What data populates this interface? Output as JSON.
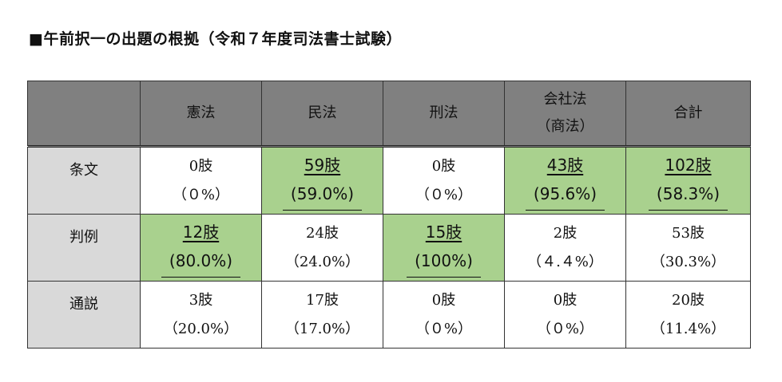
{
  "title": "■午前択一の出題の根拠（令和７年度司法書士試験）",
  "columns": [
    "",
    "憲法",
    "民法",
    "刑法",
    "会社法",
    "合計"
  ],
  "columns_sub": [
    "",
    "",
    "",
    "",
    "（商法）",
    ""
  ],
  "rows": [
    {
      "label": "条文",
      "cells": [
        {
          "count": "0肢",
          "pct": "（０%）",
          "highlight": false
        },
        {
          "count": "59肢",
          "pct": "(59.0%)",
          "highlight": true
        },
        {
          "count": "0肢",
          "pct": "（０%）",
          "highlight": false
        },
        {
          "count": "43肢",
          "pct": "(95.6%)",
          "highlight": true
        },
        {
          "count": "102肢",
          "pct": "(58.3%)",
          "highlight": true
        }
      ]
    },
    {
      "label": "判例",
      "cells": [
        {
          "count": "12肢",
          "pct": "(80.0%)",
          "highlight": true
        },
        {
          "count": "24肢",
          "pct": "（24.0%）",
          "highlight": false
        },
        {
          "count": "15肢",
          "pct": "(100%)",
          "highlight": true
        },
        {
          "count": "2肢",
          "pct": "（４.４%）",
          "highlight": false
        },
        {
          "count": "53肢",
          "pct": "（30.3%）",
          "highlight": false
        }
      ]
    },
    {
      "label": "通説",
      "cells": [
        {
          "count": "3肢",
          "pct": "（20.0%）",
          "highlight": false
        },
        {
          "count": "17肢",
          "pct": "（17.0%）",
          "highlight": false
        },
        {
          "count": "0肢",
          "pct": "（０%）",
          "highlight": false
        },
        {
          "count": "0肢",
          "pct": "（０%）",
          "highlight": false
        },
        {
          "count": "20肢",
          "pct": "（11.4%）",
          "highlight": false
        }
      ]
    }
  ],
  "colors": {
    "header_bg": "#808080",
    "rowhead_bg": "#d9d9d9",
    "highlight_bg": "#a9d18e"
  }
}
